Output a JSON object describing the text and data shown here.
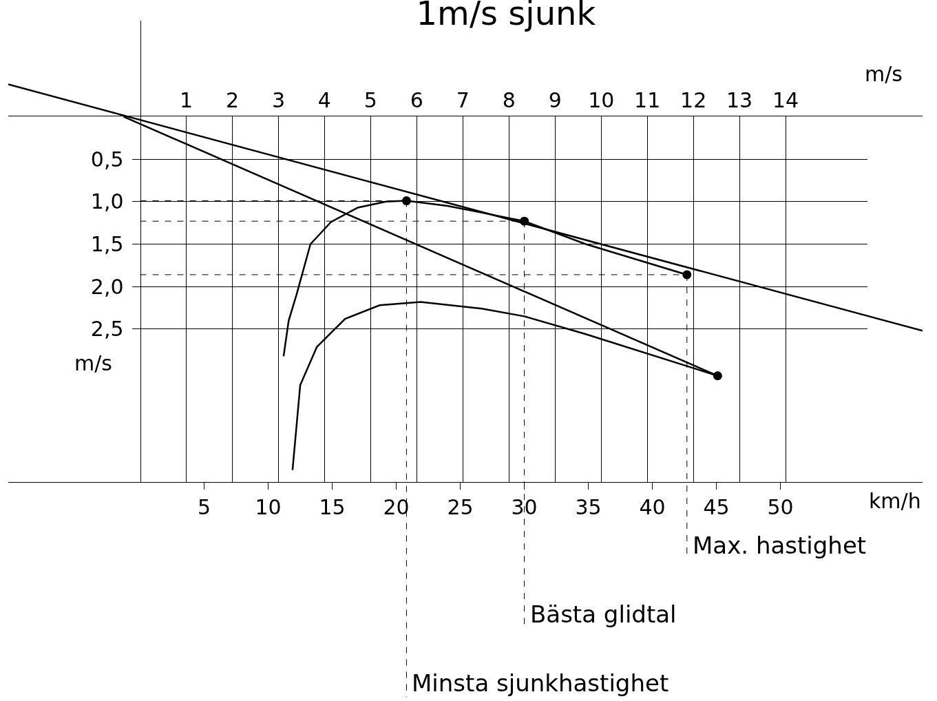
{
  "chart_data": {
    "type": "line",
    "title": "1m/s sjunk",
    "xlabel": "km/h",
    "x2label": "m/s",
    "ylabel": "m/s",
    "xlim": [
      -10.3,
      61.1
    ],
    "xticks": [
      5,
      10,
      15,
      20,
      25,
      30,
      35,
      40,
      45,
      50
    ],
    "x2lim": [
      -2.86,
      16.97
    ],
    "x2ticks": [
      1,
      2,
      3,
      4,
      5,
      6,
      7,
      8,
      9,
      10,
      11,
      12,
      13,
      14
    ],
    "ylim": [
      4.3,
      -1.13
    ],
    "yticks": [
      {
        "value": 0.5,
        "label": "0,5"
      },
      {
        "value": 1.0,
        "label": "1,0"
      },
      {
        "value": 1.5,
        "label": "1,5"
      },
      {
        "value": 2.0,
        "label": "2,0"
      },
      {
        "value": 2.5,
        "label": "2,5"
      }
    ],
    "grid": true,
    "line_style": "solid",
    "series": [
      {
        "color": "#000000",
        "marker": "none",
        "x": [
          11.2,
          11.6,
          12.2,
          13.3,
          14.9,
          17.0,
          19.2,
          20.8,
          24.0,
          26.7,
          30.0,
          34.8,
          42.7
        ],
        "values": [
          2.82,
          2.4,
          2.1,
          1.5,
          1.24,
          1.07,
          1.0,
          0.99,
          1.05,
          1.13,
          1.23,
          1.5,
          1.86
        ]
      },
      {
        "color": "#000000",
        "marker": "none",
        "x": [
          11.9,
          12.5,
          13.8,
          16.0,
          18.7,
          21.9,
          26.7,
          30.0,
          34.8,
          45.1
        ],
        "values": [
          4.16,
          3.16,
          2.71,
          2.38,
          2.22,
          2.18,
          2.26,
          2.35,
          2.56,
          3.05
        ]
      },
      {
        "color": "#000000",
        "marker": "none",
        "x": [
          -10.3,
          61.1
        ],
        "values": [
          -0.38,
          2.52
        ]
      },
      {
        "color": "#000000",
        "marker": "none",
        "x": [
          -1.3,
          45.1
        ],
        "values": [
          0.0,
          3.05
        ]
      },
      {
        "type": "scatter",
        "color": "#000000",
        "marker": "circle",
        "x": [
          20.8,
          30.0,
          42.7,
          45.1
        ],
        "values": [
          0.99,
          1.23,
          1.86,
          3.05
        ]
      }
    ],
    "ref_lines": [
      {
        "axis": "y",
        "value": 0.99,
        "line_style": "dashed"
      },
      {
        "axis": "y",
        "value": 1.23,
        "line_style": "dashed"
      },
      {
        "axis": "y",
        "value": 1.86,
        "line_style": "dashed"
      }
    ],
    "annotations": [
      {
        "text": "Max. hastighet",
        "x": 42.7,
        "y": 1.86
      },
      {
        "text": "Bästa glidtal",
        "x": 30.0,
        "y": 1.23
      },
      {
        "text": "Minsta sjunkhastighet",
        "x": 20.8,
        "y": 0.99
      }
    ]
  }
}
